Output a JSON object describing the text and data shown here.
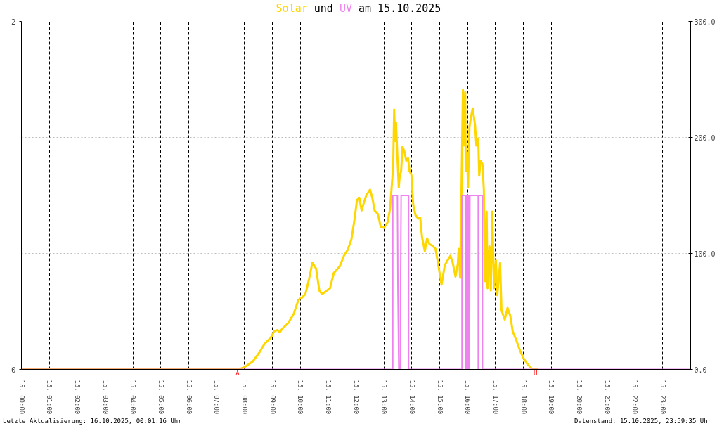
{
  "chart_data": {
    "type": "line",
    "title": "Solar und UV am 15.10.2025",
    "xlim": [
      "2025-10-15T00:00",
      "2025-10-16T00:00"
    ],
    "xticks": [
      {
        "value": "2025-10-15T00:00",
        "label": "15. 00:00"
      },
      {
        "value": "2025-10-15T01:00",
        "label": "15. 01:00"
      },
      {
        "value": "2025-10-15T02:00",
        "label": "15. 02:00"
      },
      {
        "value": "2025-10-15T03:00",
        "label": "15. 03:00"
      },
      {
        "value": "2025-10-15T04:00",
        "label": "15. 04:00"
      },
      {
        "value": "2025-10-15T05:00",
        "label": "15. 05:00"
      },
      {
        "value": "2025-10-15T06:00",
        "label": "15. 06:00"
      },
      {
        "value": "2025-10-15T07:00",
        "label": "15. 07:00"
      },
      {
        "value": "2025-10-15T08:00",
        "label": "15. 08:00"
      },
      {
        "value": "2025-10-15T09:00",
        "label": "15. 09:00"
      },
      {
        "value": "2025-10-15T10:00",
        "label": "15. 10:00"
      },
      {
        "value": "2025-10-15T11:00",
        "label": "15. 11:00"
      },
      {
        "value": "2025-10-15T12:00",
        "label": "15. 12:00"
      },
      {
        "value": "2025-10-15T13:00",
        "label": "15. 13:00"
      },
      {
        "value": "2025-10-15T14:00",
        "label": "15. 14:00"
      },
      {
        "value": "2025-10-15T15:00",
        "label": "15. 15:00"
      },
      {
        "value": "2025-10-15T16:00",
        "label": "15. 16:00"
      },
      {
        "value": "2025-10-15T17:00",
        "label": "15. 17:00"
      },
      {
        "value": "2025-10-15T18:00",
        "label": "15. 18:00"
      },
      {
        "value": "2025-10-15T19:00",
        "label": "15. 19:00"
      },
      {
        "value": "2025-10-15T20:00",
        "label": "15. 20:00"
      },
      {
        "value": "2025-10-15T21:00",
        "label": "15. 21:00"
      },
      {
        "value": "2025-10-15T22:00",
        "label": "15. 22:00"
      },
      {
        "value": "2025-10-15T23:00",
        "label": "15. 23:00"
      }
    ],
    "ylim": [
      0,
      2
    ],
    "yticks": [
      0,
      2
    ],
    "y2lim": [
      0,
      300
    ],
    "y2ticks": [
      {
        "value": 0,
        "label": "0.0"
      },
      {
        "value": 100,
        "label": "100.0"
      },
      {
        "value": 200,
        "label": "200.0"
      },
      {
        "value": 300,
        "label": "300.0"
      }
    ],
    "grid": true,
    "series": [
      {
        "color": "#ffd700",
        "axis": "y2",
        "x": [
          "2025-10-15T00:00",
          "2025-10-15T07:48",
          "2025-10-15T08:00",
          "2025-10-15T08:18",
          "2025-10-15T08:31",
          "2025-10-15T08:43",
          "2025-10-15T08:56",
          "2025-10-15T09:04",
          "2025-10-15T09:11",
          "2025-10-15T09:16",
          "2025-10-15T09:21",
          "2025-10-15T09:34",
          "2025-10-15T09:46",
          "2025-10-15T09:56",
          "2025-10-15T10:04",
          "2025-10-15T10:11",
          "2025-10-15T10:19",
          "2025-10-15T10:26",
          "2025-10-15T10:34",
          "2025-10-15T10:41",
          "2025-10-15T10:47",
          "2025-10-15T10:54",
          "2025-10-15T11:04",
          "2025-10-15T11:12",
          "2025-10-15T11:25",
          "2025-10-15T11:34",
          "2025-10-15T11:42",
          "2025-10-15T11:50",
          "2025-10-15T11:57",
          "2025-10-15T12:02",
          "2025-10-15T12:07",
          "2025-10-15T12:12",
          "2025-10-15T12:17",
          "2025-10-15T12:22",
          "2025-10-15T12:30",
          "2025-10-15T12:35",
          "2025-10-15T12:40",
          "2025-10-15T12:47",
          "2025-10-15T12:53",
          "2025-10-15T13:00",
          "2025-10-15T13:08",
          "2025-10-15T13:13",
          "2025-10-15T13:17",
          "2025-10-15T13:20",
          "2025-10-15T13:22",
          "2025-10-15T13:24",
          "2025-10-15T13:26",
          "2025-10-15T13:29",
          "2025-10-15T13:32",
          "2025-10-15T13:34",
          "2025-10-15T13:37",
          "2025-10-15T13:40",
          "2025-10-15T13:44",
          "2025-10-15T13:48",
          "2025-10-15T13:52",
          "2025-10-15T13:55",
          "2025-10-15T13:59",
          "2025-10-15T14:03",
          "2025-10-15T14:08",
          "2025-10-15T14:14",
          "2025-10-15T14:18",
          "2025-10-15T14:22",
          "2025-10-15T14:28",
          "2025-10-15T14:33",
          "2025-10-15T14:38",
          "2025-10-15T14:43",
          "2025-10-15T14:51",
          "2025-10-15T14:57",
          "2025-10-15T15:04",
          "2025-10-15T15:11",
          "2025-10-15T15:23",
          "2025-10-15T15:28",
          "2025-10-15T15:34",
          "2025-10-15T15:39",
          "2025-10-15T15:41",
          "2025-10-15T15:44",
          "2025-10-15T15:46",
          "2025-10-15T15:50",
          "2025-10-15T15:52",
          "2025-10-15T15:55",
          "2025-10-15T15:56",
          "2025-10-15T15:59",
          "2025-10-15T16:01",
          "2025-10-15T16:04",
          "2025-10-15T16:08",
          "2025-10-15T16:11",
          "2025-10-15T16:16",
          "2025-10-15T16:19",
          "2025-10-15T16:23",
          "2025-10-15T16:25",
          "2025-10-15T16:28",
          "2025-10-15T16:32",
          "2025-10-15T16:35",
          "2025-10-15T16:38",
          "2025-10-15T16:41",
          "2025-10-15T16:43",
          "2025-10-15T16:47",
          "2025-10-15T16:50",
          "2025-10-15T16:53",
          "2025-10-15T16:57",
          "2025-10-15T17:01",
          "2025-10-15T17:04",
          "2025-10-15T17:10",
          "2025-10-15T17:13",
          "2025-10-15T17:20",
          "2025-10-15T17:26",
          "2025-10-15T17:32",
          "2025-10-15T17:37",
          "2025-10-15T17:45",
          "2025-10-15T17:53",
          "2025-10-15T18:00",
          "2025-10-15T18:08",
          "2025-10-15T18:15",
          "2025-10-15T18:20",
          "2025-10-15T18:33"
        ],
        "values": [
          0,
          0,
          2,
          7,
          14,
          22,
          27,
          33,
          34,
          32,
          35,
          40,
          48,
          60,
          62,
          65,
          78,
          92,
          87,
          68,
          65,
          67,
          70,
          83,
          89,
          98,
          103,
          112,
          130,
          146,
          148,
          137,
          144,
          150,
          155,
          148,
          137,
          134,
          123,
          122,
          127,
          138,
          159,
          176,
          224,
          197,
          213,
          183,
          157,
          167,
          171,
          192,
          188,
          180,
          182,
          171,
          168,
          142,
          133,
          130,
          131,
          114,
          102,
          113,
          108,
          107,
          104,
          90,
          73,
          90,
          98,
          92,
          80,
          91,
          104,
          79,
          130,
          241,
          193,
          239,
          171,
          187,
          157,
          209,
          219,
          225,
          211,
          193,
          199,
          167,
          180,
          177,
          155,
          76,
          136,
          70,
          106,
          68,
          136,
          70,
          94,
          64,
          92,
          51,
          43,
          53,
          46,
          33,
          25,
          16,
          10,
          5,
          2,
          0,
          0
        ]
      },
      {
        "color": "#ee82ee",
        "x": [
          "2025-10-15T00:00",
          "2025-10-15T13:19",
          "2025-10-15T13:19",
          "2025-10-15T13:29",
          "2025-10-15T13:30",
          "2025-10-15T13:32",
          "2025-10-15T13:35",
          "2025-10-15T13:36",
          "2025-10-15T13:37",
          "2025-10-15T13:53",
          "2025-10-15T13:53",
          "2025-10-15T15:48",
          "2025-10-15T15:48",
          "2025-10-15T15:55",
          "2025-10-15T15:56",
          "2025-10-15T15:57",
          "2025-10-15T15:58",
          "2025-10-15T15:59",
          "2025-10-15T16:00",
          "2025-10-15T16:01",
          "2025-10-15T16:02",
          "2025-10-15T16:03",
          "2025-10-15T16:04",
          "2025-10-15T16:05",
          "2025-10-15T16:23",
          "2025-10-15T16:23",
          "2025-10-15T16:24",
          "2025-10-15T16:24",
          "2025-10-15T16:32",
          "2025-10-15T16:32",
          "2025-10-16T00:00"
        ],
        "values": [
          0,
          0,
          1,
          1,
          0.5,
          0,
          0,
          0.5,
          1,
          1,
          0,
          0,
          1,
          1,
          0,
          1,
          0,
          1,
          0,
          1,
          0,
          1,
          0,
          1,
          1,
          0,
          0,
          1,
          1,
          0,
          0
        ]
      }
    ],
    "annotations": [
      {
        "text": "A",
        "x": "2025-10-15T07:45",
        "y": 0
      },
      {
        "text": "U",
        "x": "2025-10-15T18:26",
        "y": 0
      },
      "Letzte Aktualisierung: 16.10.2025, 00:01:16 Uhr",
      "Datenstand: 15.10.2025, 23:59:35 Uhr"
    ]
  }
}
